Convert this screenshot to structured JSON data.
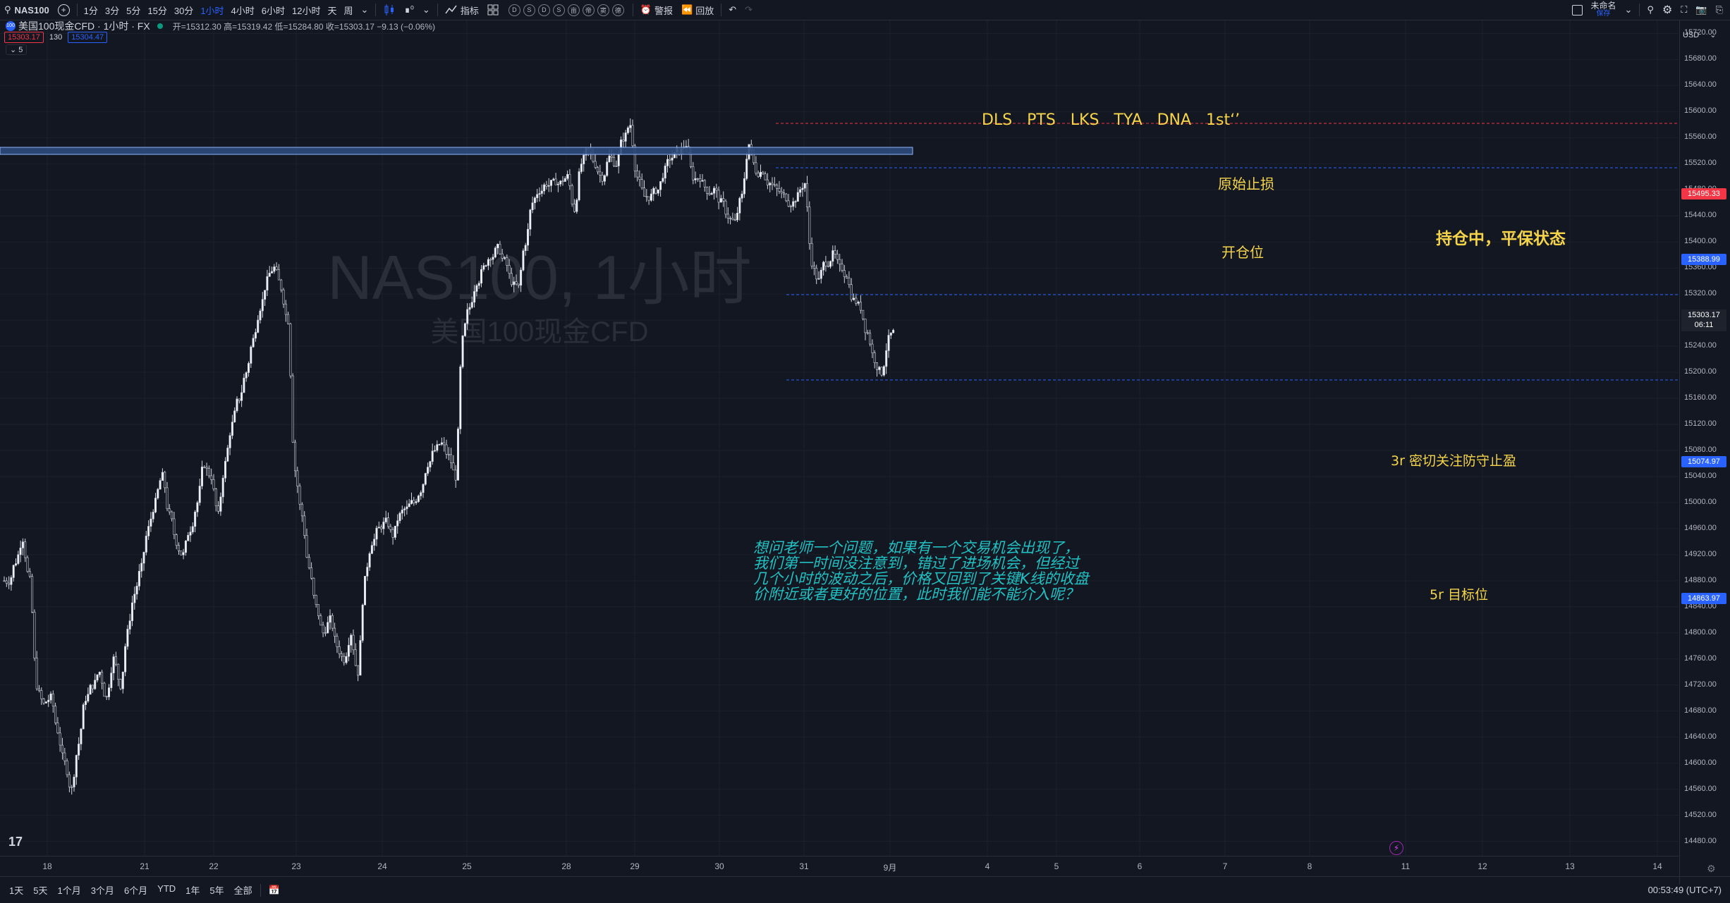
{
  "toolbar": {
    "symbol": "NAS100",
    "intervals": [
      "1分",
      "3分",
      "5分",
      "15分",
      "30分",
      "1小时",
      "4小时",
      "6小时",
      "12小时",
      "天",
      "周"
    ],
    "active_interval": "1小时",
    "indicators_label": "指标",
    "alert_label": "警报",
    "replay_label": "回放",
    "layout_name": "未命名",
    "layout_save": "保存",
    "currency": "USD",
    "circle_glyphs": [
      "D",
      "S",
      "D",
      "S",
      "亩",
      "帝",
      "窦",
      "德"
    ]
  },
  "legend": {
    "title": "美国100现金CFD · 1小时 · FX",
    "ohlc": "开=15312.30 高=15319.42 低=15284.80 收=15303.17 −9.13 (−0.06%)",
    "bid": "15303.17",
    "spread": "130",
    "ask": "15304.47",
    "indicator_count": "5"
  },
  "watermark": {
    "line1": "NAS100, 1小时",
    "line2": "美国100现金CFD"
  },
  "annotations": {
    "top_labels": "DLS   PTS   LKS   TYA   DNA   1st‘’",
    "stop_loss": "原始止损",
    "hold": "持仓中，平保状态",
    "entry": "开仓位",
    "target3": "3r 密切关注防守止盈",
    "target5": "5r 目标位",
    "question": [
      "想问老师一个问题，如果有一个交易机会出现了，",
      "我们第一时间没注意到，错过了进场机会，但经过",
      "几个小时的波动之后，价格又回到了关键K线的收盘",
      "价附近或者更好的位置，此时我们能不能介入呢？"
    ]
  },
  "price_axis": {
    "ticks": [
      "15720.00",
      "15680.00",
      "15640.00",
      "15600.00",
      "15560.00",
      "15520.00",
      "15480.00",
      "15440.00",
      "15400.00",
      "15360.00",
      "15320.00",
      "15280.00",
      "15240.00",
      "15200.00",
      "15160.00",
      "15120.00",
      "15080.00",
      "15040.00",
      "15000.00",
      "14960.00",
      "14920.00",
      "14880.00",
      "14840.00",
      "14800.00",
      "14760.00",
      "14720.00",
      "14680.00",
      "14640.00",
      "14600.00",
      "14560.00",
      "14520.00",
      "14480.00"
    ],
    "tags": {
      "stop": "15495.33",
      "entry": "15388.99",
      "current": "15303.17",
      "countdown": "06:11",
      "target3": "15074.97",
      "target5": "14863.97"
    },
    "colors": {
      "stop": "#f23645",
      "entry": "#2962ff",
      "current": "#1e222d",
      "target": "#2962ff"
    }
  },
  "time_axis": [
    "18",
    "21",
    "22",
    "23",
    "24",
    "25",
    "28",
    "29",
    "30",
    "31",
    "9月",
    "4",
    "5",
    "6",
    "7",
    "8",
    "11",
    "12",
    "13",
    "14"
  ],
  "bottom": {
    "ranges": [
      "1天",
      "5天",
      "1个月",
      "3个月",
      "6个月",
      "YTD",
      "1年",
      "5年",
      "全部"
    ],
    "clock": "00:53:49 (UTC+7)"
  },
  "chart_data": {
    "type": "candlestick",
    "symbol": "NAS100",
    "interval": "1小时",
    "ylim": [
      14460,
      15740
    ],
    "x_labels": [
      "18",
      "21",
      "22",
      "23",
      "24",
      "25",
      "28",
      "29",
      "30",
      "31",
      "9月",
      "4",
      "5",
      "6",
      "7",
      "8"
    ],
    "anchor_closes": [
      14880,
      14910,
      14945,
      14880,
      14720,
      14690,
      14700,
      14650,
      14600,
      14560,
      14630,
      14700,
      14720,
      14740,
      14700,
      14760,
      14720,
      14800,
      14860,
      14900,
      14960,
      15000,
      15040,
      14980,
      14940,
      14920,
      14960,
      15000,
      15060,
      15040,
      14980,
      15060,
      15120,
      15160,
      15200,
      15250,
      15300,
      15340,
      15360,
      15330,
      15280,
      15050,
      14980,
      14900,
      14840,
      14800,
      14820,
      14780,
      14760,
      14800,
      14740,
      14880,
      14940,
      14960,
      14970,
      14950,
      14980,
      14990,
      15000,
      15020,
      15060,
      15080,
      15090,
      15070,
      15040,
      15250,
      15300,
      15340,
      15360,
      15380,
      15390,
      15370,
      15340,
      15330,
      15400,
      15460,
      15480,
      15490,
      15490,
      15490,
      15500,
      15450,
      15520,
      15540,
      15520,
      15500,
      15530,
      15520,
      15560,
      15580,
      15500,
      15470,
      15470,
      15480,
      15510,
      15530,
      15540,
      15550,
      15500,
      15500,
      15480,
      15480,
      15460,
      15440,
      15430,
      15470,
      15550,
      15510,
      15510,
      15490,
      15480,
      15470,
      15460,
      15470,
      15490,
      15370,
      15340,
      15370,
      15380,
      15360,
      15350,
      15310,
      15300,
      15260,
      15220,
      15200,
      15250,
      15260,
      15250,
      15270,
      15260,
      15270,
      15300,
      15250,
      15230,
      15330,
      15300
    ]
  }
}
